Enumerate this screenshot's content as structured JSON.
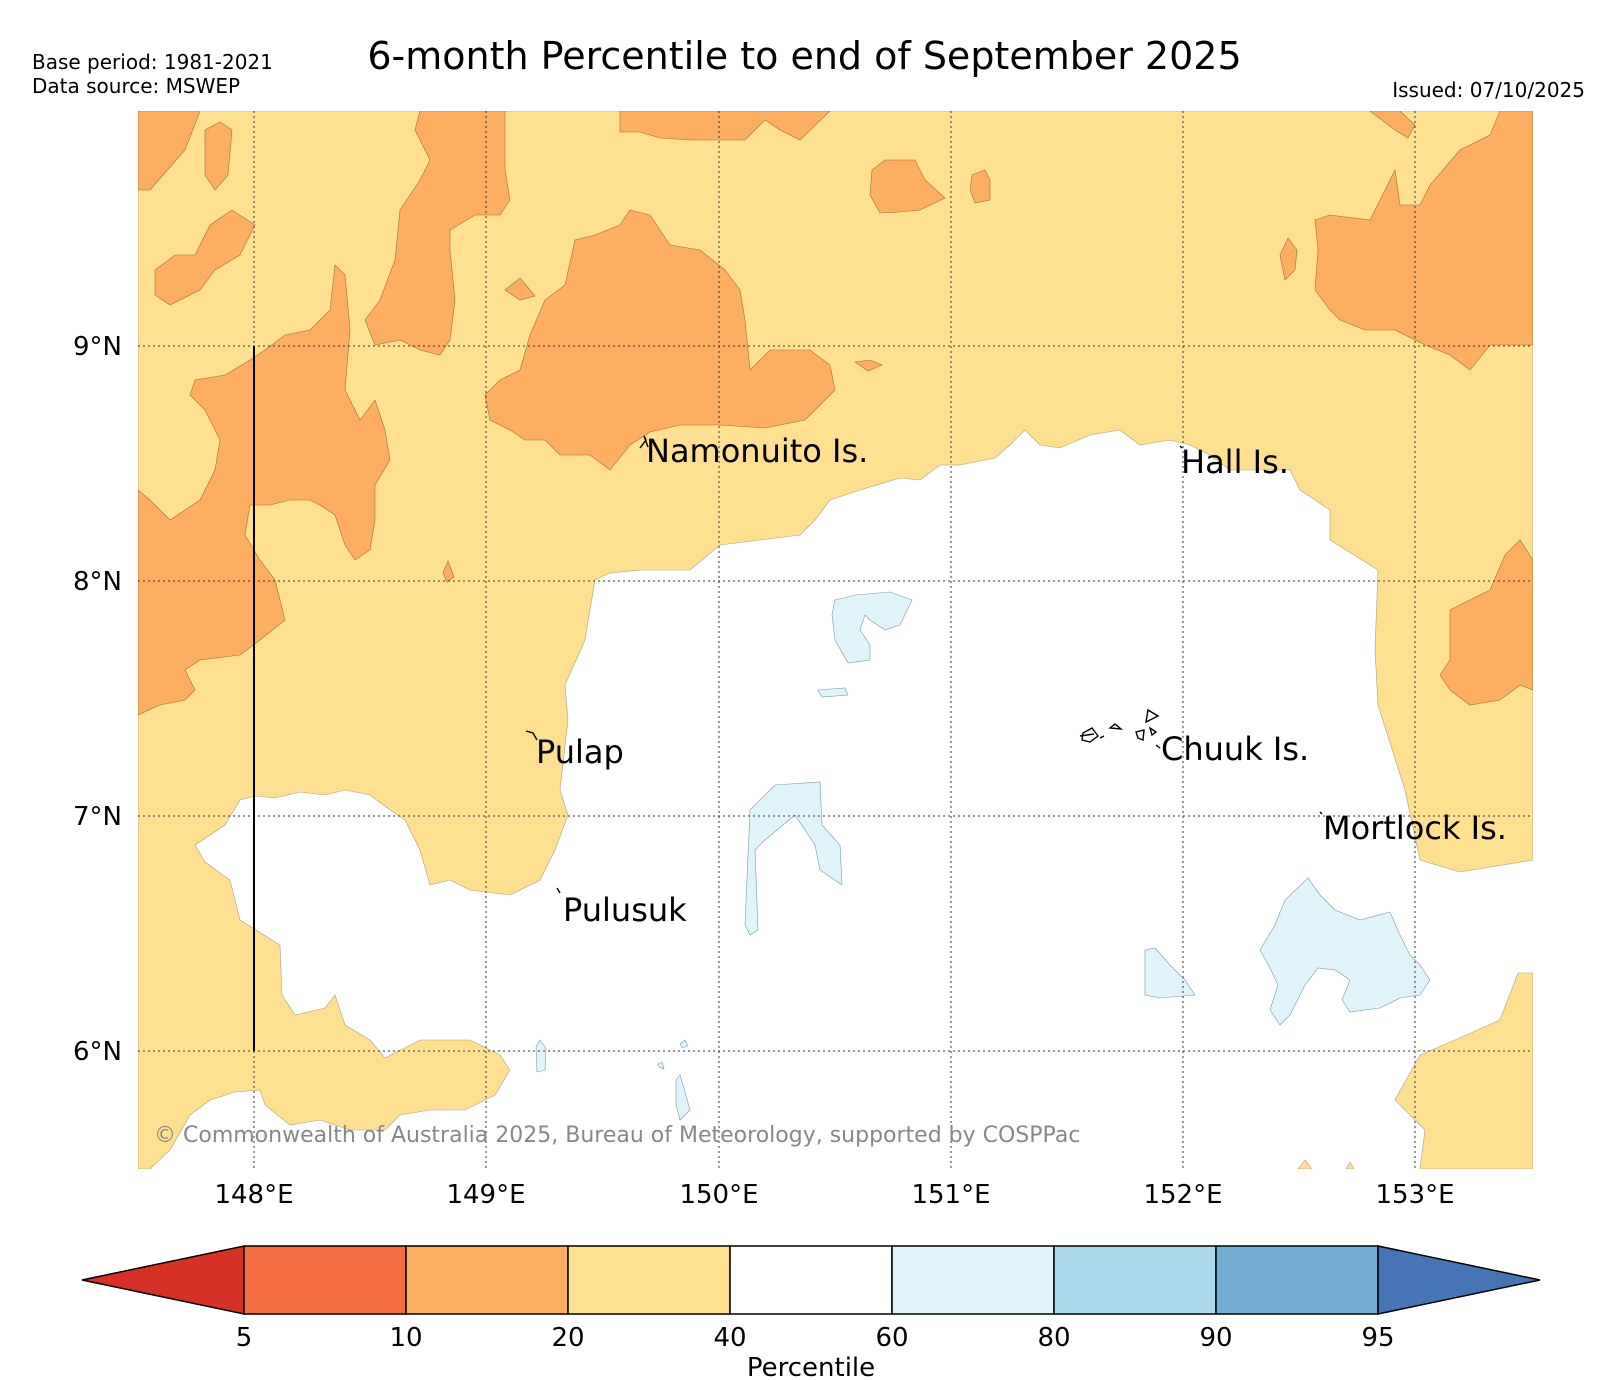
{
  "header": {
    "base_period": "Base period: 1981-2021",
    "data_source": "Data source: MSWEP",
    "title": "6-month Percentile to end of September 2025",
    "issued": "Issued: 07/10/2025"
  },
  "map": {
    "latitude_labels": [
      "9°N",
      "8°N",
      "7°N",
      "6°N"
    ],
    "longitude_labels": [
      "148°E",
      "149°E",
      "150°E",
      "151°E",
      "152°E",
      "153°E"
    ],
    "places": [
      {
        "name": "Namonuito Is."
      },
      {
        "name": "Hall Is."
      },
      {
        "name": "Pulap"
      },
      {
        "name": "Chuuk Is."
      },
      {
        "name": "Mortlock Is."
      },
      {
        "name": "Pulusuk"
      }
    ],
    "copyright": "© Commonwealth of Australia 2025, Bureau of Meteorology, supported by COSPPac"
  },
  "colorbar": {
    "title": "Percentile",
    "ticks": [
      "5",
      "10",
      "20",
      "40",
      "60",
      "80",
      "90",
      "95"
    ],
    "colors": [
      "#d73027",
      "#f46d43",
      "#fdae61",
      "#fee090",
      "#ffffff",
      "#e0f3f8",
      "#abd9e9",
      "#74add1",
      "#4575b4"
    ]
  }
}
